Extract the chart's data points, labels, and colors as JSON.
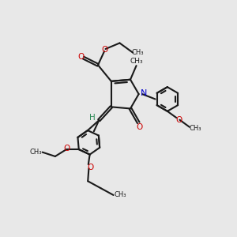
{
  "background_color": "#e8e8e8",
  "bond_color": "#1a1a1a",
  "oxygen_color": "#cc0000",
  "nitrogen_color": "#0000cc",
  "hydrogen_color": "#2e8b57",
  "line_width": 1.5,
  "figsize": [
    3.0,
    3.0
  ],
  "dpi": 100,
  "xlim": [
    0,
    10
  ],
  "ylim": [
    0,
    10
  ]
}
